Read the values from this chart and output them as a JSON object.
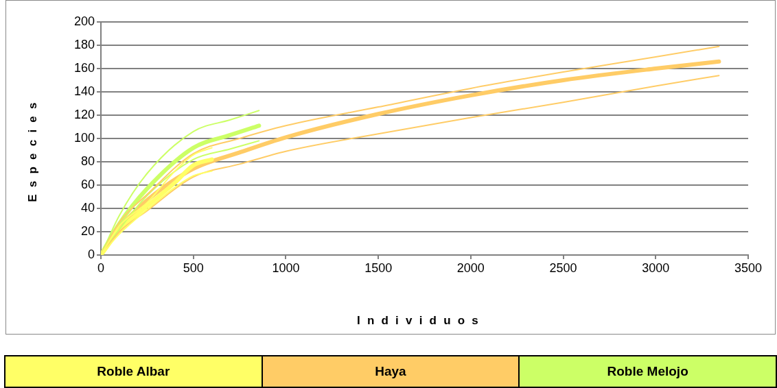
{
  "chart_data": {
    "type": "line",
    "xlabel": "Individuos",
    "ylabel": "Especies",
    "xlim": [
      0,
      3500
    ],
    "xticks": [
      0,
      500,
      1000,
      1500,
      2000,
      2500,
      3000,
      3500
    ],
    "ylim": [
      0,
      200
    ],
    "yticks": [
      0,
      20,
      40,
      60,
      80,
      100,
      120,
      140,
      160,
      180,
      200
    ],
    "grid": "y",
    "legend": "bottom",
    "marker": "none",
    "line_style": "solid",
    "series": [
      {
        "name": "Roble Albar",
        "color": "#ffff66",
        "x": [
          0,
          100,
          250,
          400,
          500,
          600
        ],
        "values": [
          0,
          21,
          42,
          62,
          77,
          82
        ]
      },
      {
        "color": "#ffff66",
        "x": [
          0,
          100,
          250,
          400,
          500,
          600
        ],
        "values": [
          0,
          25,
          45,
          72,
          86,
          92
        ]
      },
      {
        "color": "#ffff66",
        "x": [
          0,
          100,
          250,
          400,
          500,
          600
        ],
        "values": [
          0,
          18,
          39,
          58,
          68,
          72
        ]
      },
      {
        "name": "Haya",
        "color": "#ffcc66",
        "x": [
          0,
          100,
          250,
          500,
          750,
          1000,
          1500,
          2000,
          2500,
          3000,
          3342
        ],
        "values": [
          0,
          23,
          47,
          74,
          88,
          101,
          121,
          137,
          150,
          160,
          166
        ]
      },
      {
        "color": "#ffcc66",
        "x": [
          0,
          100,
          250,
          500,
          750,
          1000,
          1500,
          2000,
          2500,
          3000,
          3342
        ],
        "values": [
          0,
          28,
          52,
          87,
          100,
          111,
          127,
          143,
          157,
          170,
          179
        ]
      },
      {
        "color": "#ffcc66",
        "x": [
          0,
          100,
          250,
          500,
          750,
          1000,
          1500,
          2000,
          2500,
          3000,
          3342
        ],
        "values": [
          0,
          20,
          38,
          67,
          78,
          89,
          104,
          118,
          131,
          145,
          154
        ]
      },
      {
        "name": "Roble Melojo",
        "color": "#ccff66",
        "x": [
          0,
          100,
          250,
          500,
          700,
          855
        ],
        "values": [
          0,
          27,
          57,
          92,
          103,
          111
        ]
      },
      {
        "color": "#ccff66",
        "x": [
          0,
          100,
          250,
          500,
          700,
          855
        ],
        "values": [
          0,
          34,
          70,
          106,
          116,
          124
        ]
      },
      {
        "color": "#ccff66",
        "x": [
          0,
          100,
          250,
          500,
          700,
          855
        ],
        "values": [
          0,
          22,
          51,
          82,
          91,
          98
        ]
      }
    ]
  }
}
